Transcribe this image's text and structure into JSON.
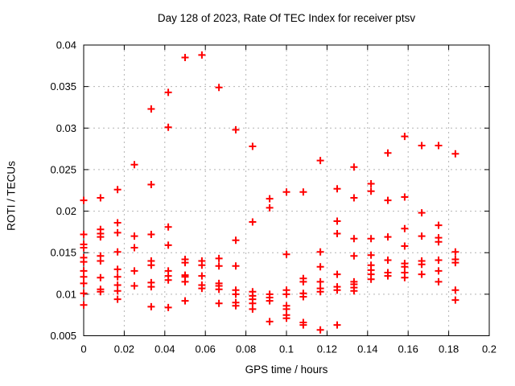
{
  "title": "Day 128 of 2023, Rate Of TEC Index for receiver ptsv",
  "chart_data": {
    "type": "scatter",
    "title": "Day 128 of 2023, Rate Of TEC Index for receiver ptsv",
    "xlabel": "GPS time / hours",
    "ylabel": "ROTI / TECUs",
    "xlim": [
      0,
      0.2
    ],
    "ylim": [
      0.005,
      0.04
    ],
    "xticks": [
      0,
      0.02,
      0.04,
      0.06,
      0.08,
      0.1,
      0.12,
      0.14,
      0.16,
      0.18,
      0.2
    ],
    "xtick_labels": [
      "0",
      "0.02",
      "0.04",
      "0.06",
      "0.08",
      "0.1",
      "0.12",
      "0.14",
      "0.16",
      "0.18",
      "0.2"
    ],
    "yticks": [
      0.005,
      0.01,
      0.015,
      0.02,
      0.025,
      0.03,
      0.035,
      0.04
    ],
    "ytick_labels": [
      "0.005",
      "0.01",
      "0.015",
      "0.02",
      "0.025",
      "0.03",
      "0.035",
      "0.04"
    ],
    "grid": true,
    "legend_position": "none",
    "marker": "plus",
    "colors": {
      "marker": "#ff0000",
      "grid": "#b4b4b4",
      "border": "#000000",
      "text": "#000000",
      "background": "#ffffff"
    },
    "series": [
      {
        "name": "ROTI",
        "points": [
          [
            0.0,
            0.0213
          ],
          [
            0.0,
            0.0172
          ],
          [
            0.0,
            0.016
          ],
          [
            0.0,
            0.0156
          ],
          [
            0.0,
            0.0144
          ],
          [
            0.0,
            0.0139
          ],
          [
            0.0,
            0.0128
          ],
          [
            0.0,
            0.0121
          ],
          [
            0.0,
            0.0113
          ],
          [
            0.0,
            0.0101
          ],
          [
            0.0,
            0.0087
          ],
          [
            0.0083,
            0.0216
          ],
          [
            0.0083,
            0.0178
          ],
          [
            0.0083,
            0.0173
          ],
          [
            0.0083,
            0.0169
          ],
          [
            0.0083,
            0.0146
          ],
          [
            0.0083,
            0.014
          ],
          [
            0.0083,
            0.012
          ],
          [
            0.0083,
            0.0106
          ],
          [
            0.0083,
            0.0103
          ],
          [
            0.0167,
            0.0226
          ],
          [
            0.0167,
            0.0186
          ],
          [
            0.0167,
            0.0174
          ],
          [
            0.0167,
            0.0151
          ],
          [
            0.0167,
            0.013
          ],
          [
            0.0167,
            0.0121
          ],
          [
            0.0167,
            0.0111
          ],
          [
            0.0167,
            0.0104
          ],
          [
            0.0167,
            0.0094
          ],
          [
            0.025,
            0.0256
          ],
          [
            0.025,
            0.017
          ],
          [
            0.025,
            0.0156
          ],
          [
            0.025,
            0.0128
          ],
          [
            0.025,
            0.011
          ],
          [
            0.0333,
            0.0323
          ],
          [
            0.0333,
            0.0232
          ],
          [
            0.0333,
            0.0172
          ],
          [
            0.0333,
            0.014
          ],
          [
            0.0333,
            0.0135
          ],
          [
            0.0333,
            0.0114
          ],
          [
            0.0333,
            0.0109
          ],
          [
            0.0333,
            0.0085
          ],
          [
            0.0417,
            0.0343
          ],
          [
            0.0417,
            0.0301
          ],
          [
            0.0417,
            0.0181
          ],
          [
            0.0417,
            0.0159
          ],
          [
            0.0417,
            0.0128
          ],
          [
            0.0417,
            0.0122
          ],
          [
            0.0417,
            0.0117
          ],
          [
            0.0417,
            0.0084
          ],
          [
            0.05,
            0.0385
          ],
          [
            0.05,
            0.0142
          ],
          [
            0.05,
            0.0138
          ],
          [
            0.05,
            0.0123
          ],
          [
            0.05,
            0.0121
          ],
          [
            0.05,
            0.0115
          ],
          [
            0.05,
            0.0092
          ],
          [
            0.0583,
            0.0388
          ],
          [
            0.0583,
            0.014
          ],
          [
            0.0583,
            0.0135
          ],
          [
            0.0583,
            0.0122
          ],
          [
            0.0583,
            0.0111
          ],
          [
            0.0583,
            0.0107
          ],
          [
            0.0667,
            0.0349
          ],
          [
            0.0667,
            0.0143
          ],
          [
            0.0667,
            0.0134
          ],
          [
            0.0667,
            0.0113
          ],
          [
            0.0667,
            0.011
          ],
          [
            0.0667,
            0.0106
          ],
          [
            0.0667,
            0.0089
          ],
          [
            0.075,
            0.0298
          ],
          [
            0.075,
            0.0165
          ],
          [
            0.075,
            0.0134
          ],
          [
            0.075,
            0.0105
          ],
          [
            0.075,
            0.01
          ],
          [
            0.075,
            0.009
          ],
          [
            0.075,
            0.0086
          ],
          [
            0.0833,
            0.0278
          ],
          [
            0.0833,
            0.0187
          ],
          [
            0.0833,
            0.0103
          ],
          [
            0.0833,
            0.0098
          ],
          [
            0.0833,
            0.0094
          ],
          [
            0.0833,
            0.0089
          ],
          [
            0.0833,
            0.0082
          ],
          [
            0.0917,
            0.0215
          ],
          [
            0.0917,
            0.0204
          ],
          [
            0.0917,
            0.01
          ],
          [
            0.0917,
            0.0096
          ],
          [
            0.0917,
            0.0092
          ],
          [
            0.0917,
            0.0067
          ],
          [
            0.1,
            0.0223
          ],
          [
            0.1,
            0.0148
          ],
          [
            0.1,
            0.0105
          ],
          [
            0.1,
            0.01
          ],
          [
            0.1,
            0.0086
          ],
          [
            0.1,
            0.0082
          ],
          [
            0.1,
            0.0075
          ],
          [
            0.1,
            0.0071
          ],
          [
            0.1083,
            0.0223
          ],
          [
            0.1083,
            0.0119
          ],
          [
            0.1083,
            0.0115
          ],
          [
            0.1083,
            0.0101
          ],
          [
            0.1083,
            0.0097
          ],
          [
            0.1083,
            0.0066
          ],
          [
            0.1083,
            0.0063
          ],
          [
            0.1167,
            0.0261
          ],
          [
            0.1167,
            0.0151
          ],
          [
            0.1167,
            0.0133
          ],
          [
            0.1167,
            0.0115
          ],
          [
            0.1167,
            0.0107
          ],
          [
            0.1167,
            0.0103
          ],
          [
            0.1167,
            0.0057
          ],
          [
            0.125,
            0.0227
          ],
          [
            0.125,
            0.0188
          ],
          [
            0.125,
            0.0173
          ],
          [
            0.125,
            0.0124
          ],
          [
            0.125,
            0.0109
          ],
          [
            0.125,
            0.0105
          ],
          [
            0.125,
            0.0063
          ],
          [
            0.1333,
            0.0253
          ],
          [
            0.1333,
            0.0216
          ],
          [
            0.1333,
            0.0167
          ],
          [
            0.1333,
            0.0146
          ],
          [
            0.1333,
            0.0115
          ],
          [
            0.1333,
            0.0112
          ],
          [
            0.1333,
            0.0108
          ],
          [
            0.1333,
            0.0104
          ],
          [
            0.1417,
            0.0233
          ],
          [
            0.1417,
            0.0224
          ],
          [
            0.1417,
            0.0167
          ],
          [
            0.1417,
            0.0147
          ],
          [
            0.1417,
            0.0135
          ],
          [
            0.1417,
            0.0129
          ],
          [
            0.1417,
            0.0124
          ],
          [
            0.1417,
            0.0118
          ],
          [
            0.15,
            0.027
          ],
          [
            0.15,
            0.0213
          ],
          [
            0.15,
            0.0169
          ],
          [
            0.15,
            0.0141
          ],
          [
            0.15,
            0.0126
          ],
          [
            0.15,
            0.0122
          ],
          [
            0.1583,
            0.029
          ],
          [
            0.1583,
            0.0217
          ],
          [
            0.1583,
            0.0179
          ],
          [
            0.1583,
            0.0158
          ],
          [
            0.1583,
            0.0137
          ],
          [
            0.1583,
            0.0133
          ],
          [
            0.1583,
            0.0126
          ],
          [
            0.1583,
            0.012
          ],
          [
            0.1667,
            0.0279
          ],
          [
            0.1667,
            0.0198
          ],
          [
            0.1667,
            0.017
          ],
          [
            0.1667,
            0.014
          ],
          [
            0.1667,
            0.0136
          ],
          [
            0.1667,
            0.0124
          ],
          [
            0.175,
            0.0279
          ],
          [
            0.175,
            0.0183
          ],
          [
            0.175,
            0.0168
          ],
          [
            0.175,
            0.0163
          ],
          [
            0.175,
            0.0141
          ],
          [
            0.175,
            0.0128
          ],
          [
            0.175,
            0.0115
          ],
          [
            0.1833,
            0.0269
          ],
          [
            0.1833,
            0.0151
          ],
          [
            0.1833,
            0.0142
          ],
          [
            0.1833,
            0.0138
          ],
          [
            0.1833,
            0.0105
          ],
          [
            0.1833,
            0.0093
          ]
        ]
      }
    ]
  }
}
